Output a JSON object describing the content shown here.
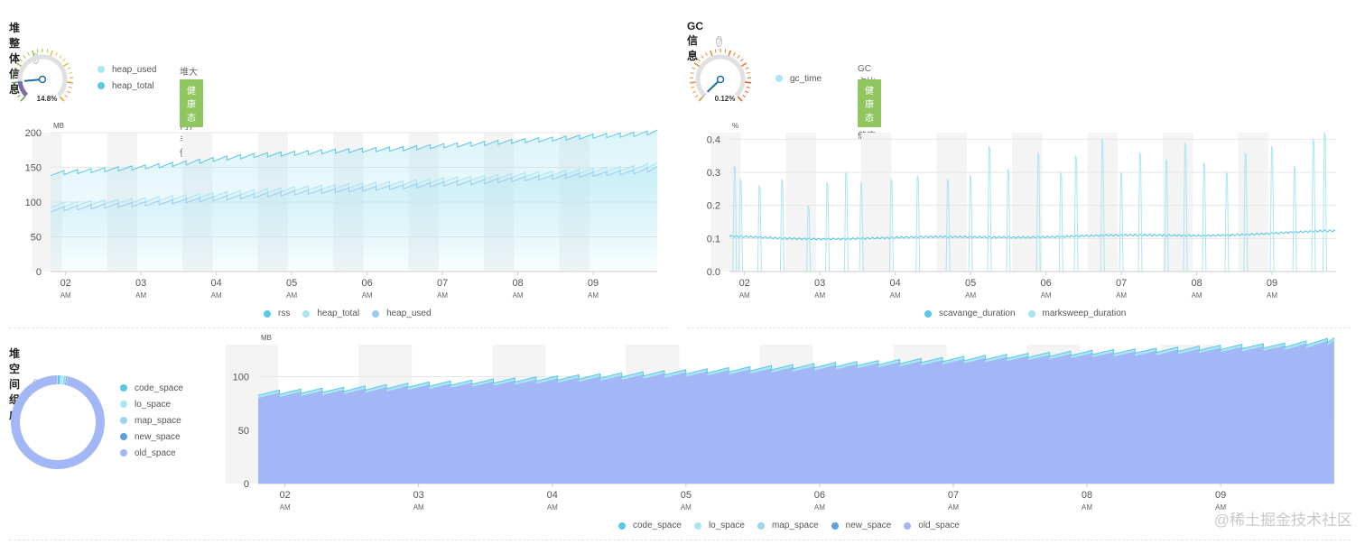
{
  "colors": {
    "rss": "#5bc8e3",
    "heap_total": "#a9e5f2",
    "heap_used": "#9ccbf0",
    "scavenge": "#5bc8e3",
    "marksweep": "#a9e5f2",
    "code_space": "#5bc8e3",
    "lo_space": "#a9e5f2",
    "map_space": "#9cd3ef",
    "new_space": "#5f9fdc",
    "old_space": "#a3b6f5",
    "badge": "#8fc65f"
  },
  "heap": {
    "title": "堆整体信息",
    "help_icon": "?",
    "gauge_value": "14.8%",
    "gauge_fraction": 0.148,
    "legend": [
      "heap_used",
      "heap_total"
    ],
    "status_text": "堆大小在正常范围内，非常健康",
    "badge": "健康态",
    "chart_legend": [
      "rss",
      "heap_total",
      "heap_used"
    ]
  },
  "gc": {
    "title": "GC 信息",
    "help_icon": "?",
    "gauge_value": "0.12%",
    "gauge_fraction": 0.0012,
    "legend": [
      "gc_time"
    ],
    "status_text": "GC占比低于5%，状态健康",
    "badge": "健康态",
    "chart_legend": [
      "scavange_duration",
      "marksweep_duration"
    ]
  },
  "space": {
    "title": "堆空间组成",
    "help_icon": "?",
    "legend": [
      "code_space",
      "lo_space",
      "map_space",
      "new_space",
      "old_space"
    ],
    "chart_legend": [
      "code_space",
      "lo_space",
      "map_space",
      "new_space",
      "old_space"
    ]
  },
  "watermark": "@稀土掘金技术社区",
  "chart_data": [
    {
      "type": "area",
      "title": "",
      "ylabel": "MB",
      "ylim": [
        0,
        200
      ],
      "yticks": [
        "0",
        "50",
        "100",
        "150",
        "200"
      ],
      "xticks": [
        "02",
        "03",
        "04",
        "05",
        "06",
        "07",
        "08",
        "09"
      ],
      "xtick_sub": "AM",
      "xlim": [
        1.8,
        9.85
      ],
      "series": [
        {
          "name": "rss",
          "x": [
            1.8,
            2.3,
            3.0,
            3.5,
            4.0,
            4.5,
            5.0,
            5.5,
            6.0,
            6.5,
            7.0,
            7.5,
            8.0,
            8.5,
            9.0,
            9.5,
            9.85
          ],
          "values": [
            144,
            148,
            153,
            158,
            165,
            170,
            173,
            176,
            178,
            180,
            184,
            187,
            191,
            194,
            198,
            200,
            204
          ]
        },
        {
          "name": "heap_total",
          "x": [
            1.8,
            2.3,
            3.0,
            3.5,
            4.0,
            4.5,
            5.0,
            5.5,
            6.0,
            6.5,
            7.0,
            7.5,
            8.0,
            8.5,
            9.0,
            9.5,
            9.85
          ],
          "values": [
            98,
            102,
            106,
            110,
            114,
            118,
            122,
            125,
            128,
            131,
            135,
            138,
            142,
            145,
            149,
            152,
            157
          ]
        },
        {
          "name": "heap_used",
          "x": [
            1.8,
            2.3,
            3.0,
            3.5,
            4.0,
            4.5,
            5.0,
            5.5,
            6.0,
            6.5,
            7.0,
            7.5,
            8.0,
            8.5,
            9.0,
            9.5,
            9.85
          ],
          "values": [
            92,
            96,
            100,
            104,
            108,
            112,
            116,
            119,
            122,
            125,
            129,
            132,
            136,
            139,
            143,
            146,
            151
          ]
        }
      ]
    },
    {
      "type": "line",
      "title": "",
      "ylabel": "%",
      "ylim": [
        0,
        0.42
      ],
      "yticks": [
        "0.0",
        "0.1",
        "0.2",
        "0.3",
        "0.4"
      ],
      "xticks": [
        "02",
        "03",
        "04",
        "05",
        "06",
        "07",
        "08",
        "09"
      ],
      "xtick_sub": "AM",
      "xlim": [
        1.8,
        9.85
      ],
      "series": [
        {
          "name": "scavange_duration",
          "x": [
            1.8,
            2.5,
            3.0,
            4.0,
            5.0,
            6.0,
            7.0,
            8.0,
            9.0,
            9.85
          ],
          "values": [
            0.105,
            0.1,
            0.1,
            0.102,
            0.104,
            0.106,
            0.108,
            0.11,
            0.115,
            0.122
          ]
        },
        {
          "name": "marksweep_duration",
          "x": [
            1.87,
            1.95,
            2.2,
            2.5,
            2.85,
            3.1,
            3.35,
            3.55,
            3.95,
            4.3,
            4.7,
            5.0,
            5.25,
            5.5,
            5.9,
            6.2,
            6.4,
            6.75,
            7.0,
            7.25,
            7.6,
            7.85,
            8.1,
            8.4,
            8.65,
            9.0,
            9.3,
            9.55,
            9.7
          ],
          "values": [
            0.32,
            0.28,
            0.26,
            0.28,
            0.2,
            0.27,
            0.3,
            0.27,
            0.28,
            0.29,
            0.28,
            0.29,
            0.38,
            0.31,
            0.36,
            0.3,
            0.35,
            0.4,
            0.3,
            0.36,
            0.34,
            0.39,
            0.33,
            0.3,
            0.36,
            0.38,
            0.32,
            0.4,
            0.42
          ]
        }
      ]
    },
    {
      "type": "area",
      "title": "",
      "ylabel": "MB",
      "ylim": [
        0,
        130
      ],
      "yticks": [
        "0",
        "50",
        "100"
      ],
      "xticks": [
        "02",
        "03",
        "04",
        "05",
        "06",
        "07",
        "08",
        "09"
      ],
      "xtick_sub": "AM",
      "xlim": [
        1.8,
        9.85
      ],
      "series": [
        {
          "name": "old_space",
          "x": [
            1.8,
            2.5,
            3.0,
            3.5,
            4.0,
            4.5,
            5.0,
            5.5,
            6.0,
            6.5,
            7.0,
            7.5,
            8.0,
            8.5,
            9.0,
            9.5,
            9.85
          ],
          "values": [
            84,
            88,
            92,
            95,
            98,
            101,
            104,
            107,
            110,
            113,
            116,
            119,
            122,
            124,
            127,
            129,
            134
          ]
        },
        {
          "name": "new_space",
          "x": [
            1.8,
            9.85
          ],
          "values": [
            1,
            1
          ]
        },
        {
          "name": "map_space",
          "x": [
            1.8,
            9.85
          ],
          "values": [
            1,
            1
          ]
        },
        {
          "name": "lo_space",
          "x": [
            1.8,
            9.85
          ],
          "values": [
            1,
            1
          ]
        },
        {
          "name": "code_space",
          "x": [
            1.8,
            9.85
          ],
          "values": [
            1,
            1
          ]
        }
      ]
    },
    {
      "type": "pie",
      "title": "",
      "categories": [
        "code_space",
        "lo_space",
        "map_space",
        "new_space",
        "old_space"
      ],
      "values": [
        1,
        1,
        1,
        0.5,
        96.5
      ]
    }
  ]
}
